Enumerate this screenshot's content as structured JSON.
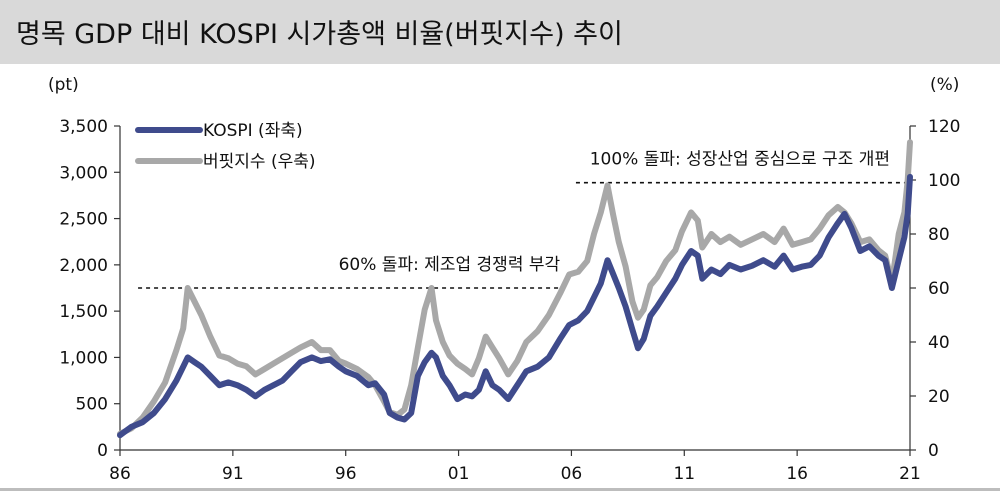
{
  "header": {
    "title": "명목 GDP 대비 KOSPI 시가총액 비율(버핏지수) 추이"
  },
  "colors": {
    "kospi": "#3f4b8c",
    "buffett": "#a8a8a8",
    "header_bg": "#d9d9d9"
  },
  "chart_data": {
    "type": "line",
    "title": "명목 GDP 대비 KOSPI 시가총액 비율(버핏지수) 추이",
    "left_unit": "(pt)",
    "right_unit": "(%)",
    "x_ticks": [
      "86",
      "91",
      "96",
      "01",
      "06",
      "11",
      "16",
      "21"
    ],
    "y_left": {
      "lim": [
        0,
        3500
      ],
      "ticks": [
        "0",
        "500",
        "1,000",
        "1,500",
        "2,000",
        "2,500",
        "3,000",
        "3,500"
      ]
    },
    "y_right": {
      "lim": [
        0,
        120
      ],
      "ticks": [
        "0",
        "20",
        "40",
        "60",
        "80",
        "100",
        "120"
      ]
    },
    "legend": {
      "position": "top-left",
      "entries": [
        "KOSPI (좌축)",
        "버핏지수 (우축)"
      ]
    },
    "annotations": [
      {
        "text": "60% 돌파:  제조업 경쟁력 부각",
        "ref_value": 60,
        "x_from": 1986.8,
        "x_to": 2005.5
      },
      {
        "text": "100% 돌파: 성장산업 중심으로 구조 개편",
        "ref_value": 99,
        "x_from": 2006.2,
        "x_to": 2021
      }
    ],
    "series": [
      {
        "name": "KOSPI (좌축)",
        "axis": "left",
        "x": [
          1986.0,
          1986.5,
          1987.0,
          1987.5,
          1988.0,
          1988.5,
          1988.8,
          1989.0,
          1989.3,
          1989.6,
          1990.0,
          1990.4,
          1990.8,
          1991.2,
          1991.6,
          1992.0,
          1992.4,
          1992.8,
          1993.2,
          1993.6,
          1994.0,
          1994.5,
          1994.9,
          1995.3,
          1995.7,
          1996.0,
          1996.5,
          1997.0,
          1997.3,
          1997.7,
          1997.95,
          1998.3,
          1998.6,
          1998.9,
          1999.2,
          1999.5,
          1999.8,
          2000.0,
          2000.3,
          2000.6,
          2000.95,
          2001.3,
          2001.6,
          2001.9,
          2002.2,
          2002.5,
          2002.8,
          2003.2,
          2003.6,
          2004.0,
          2004.5,
          2005.0,
          2005.5,
          2005.9,
          2006.3,
          2006.7,
          2007.0,
          2007.3,
          2007.6,
          2007.85,
          2008.1,
          2008.4,
          2008.7,
          2008.95,
          2009.2,
          2009.5,
          2009.8,
          2010.2,
          2010.6,
          2010.9,
          2011.3,
          2011.6,
          2011.8,
          2012.2,
          2012.6,
          2013.0,
          2013.5,
          2014.0,
          2014.5,
          2015.0,
          2015.4,
          2015.8,
          2016.2,
          2016.6,
          2017.0,
          2017.4,
          2017.8,
          2018.1,
          2018.4,
          2018.8,
          2019.2,
          2019.6,
          2019.9,
          2020.2,
          2020.5,
          2020.75,
          2020.9,
          2021.0
        ],
        "values": [
          160,
          250,
          300,
          400,
          550,
          750,
          900,
          1000,
          950,
          900,
          800,
          700,
          730,
          700,
          650,
          580,
          650,
          700,
          750,
          850,
          950,
          1000,
          960,
          980,
          900,
          850,
          800,
          700,
          720,
          600,
          400,
          350,
          330,
          400,
          800,
          950,
          1050,
          1000,
          800,
          700,
          550,
          600,
          580,
          650,
          850,
          700,
          650,
          550,
          700,
          850,
          900,
          1000,
          1200,
          1350,
          1400,
          1500,
          1650,
          1800,
          2050,
          1900,
          1750,
          1550,
          1300,
          1100,
          1200,
          1450,
          1550,
          1700,
          1850,
          2000,
          2150,
          2100,
          1850,
          1950,
          1900,
          2000,
          1950,
          1990,
          2050,
          1980,
          2100,
          1950,
          1980,
          2000,
          2100,
          2300,
          2450,
          2550,
          2400,
          2150,
          2200,
          2100,
          2050,
          1750,
          2050,
          2300,
          2550,
          2950
        ]
      },
      {
        "name": "버핏지수 (우축)",
        "axis": "right",
        "x": [
          1986.0,
          1986.5,
          1987.0,
          1987.5,
          1988.0,
          1988.5,
          1988.8,
          1989.0,
          1989.3,
          1989.6,
          1990.0,
          1990.4,
          1990.8,
          1991.2,
          1991.6,
          1992.0,
          1992.4,
          1992.8,
          1993.2,
          1993.6,
          1994.0,
          1994.5,
          1994.9,
          1995.3,
          1995.7,
          1996.0,
          1996.5,
          1997.0,
          1997.3,
          1997.7,
          1997.95,
          1998.3,
          1998.6,
          1998.9,
          1999.2,
          1999.5,
          1999.8,
          2000.0,
          2000.3,
          2000.6,
          2000.95,
          2001.3,
          2001.6,
          2001.9,
          2002.2,
          2002.5,
          2002.8,
          2003.2,
          2003.6,
          2004.0,
          2004.5,
          2005.0,
          2005.5,
          2005.9,
          2006.3,
          2006.7,
          2007.0,
          2007.3,
          2007.6,
          2007.85,
          2008.1,
          2008.4,
          2008.7,
          2008.95,
          2009.2,
          2009.5,
          2009.8,
          2010.2,
          2010.6,
          2010.9,
          2011.3,
          2011.6,
          2011.8,
          2012.2,
          2012.6,
          2013.0,
          2013.5,
          2014.0,
          2014.5,
          2015.0,
          2015.4,
          2015.8,
          2016.2,
          2016.6,
          2017.0,
          2017.4,
          2017.8,
          2018.1,
          2018.4,
          2018.8,
          2019.2,
          2019.6,
          2019.9,
          2020.2,
          2020.5,
          2020.75,
          2020.9,
          2021.0
        ],
        "values": [
          6,
          8,
          12,
          18,
          25,
          37,
          45,
          60,
          55,
          50,
          42,
          35,
          34,
          32,
          31,
          28,
          30,
          32,
          34,
          36,
          38,
          40,
          37,
          37,
          33,
          32,
          30,
          27,
          24,
          18,
          14,
          13,
          15,
          24,
          38,
          52,
          60,
          48,
          40,
          35,
          32,
          30,
          28,
          34,
          42,
          38,
          34,
          28,
          33,
          40,
          44,
          50,
          58,
          65,
          66,
          70,
          80,
          88,
          98,
          87,
          77,
          68,
          55,
          49,
          52,
          61,
          64,
          70,
          74,
          81,
          88,
          85,
          75,
          80,
          77,
          79,
          76,
          78,
          80,
          77,
          82,
          76,
          77,
          78,
          82,
          87,
          90,
          88,
          84,
          77,
          78,
          74,
          72,
          62,
          80,
          88,
          100,
          114
        ]
      }
    ]
  }
}
